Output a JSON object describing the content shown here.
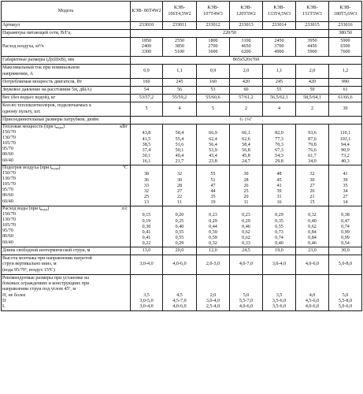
{
  "header": {
    "model_label": "Модель",
    "models": [
      "КЭВ-\n86Т4W2",
      "КЭВ-\n106Т4,5W2",
      "КЭВ-\n107Т4W3",
      "КЭВ-\n120Т5W2",
      "КЭВ-\n133Т4,5W3",
      "КЭВ-\n151Т5W3",
      "КЭВ-\n180Т5,6W3"
    ]
  },
  "rows": {
    "article": {
      "label": "Артикул",
      "values": [
        "233010",
        "233011",
        "233012",
        "233013",
        "233014",
        "233015",
        "233016"
      ]
    },
    "supply": {
      "label": "Параметры питающей сети, В/Гц",
      "value_main": "220/50",
      "value_last": "380/50"
    },
    "airflow": {
      "label": "Расход воздуха, м³/ч",
      "values": [
        "1850\n2400\n3300",
        "2550\n3850\n5100",
        "1800\n2700\n3600",
        "3100\n4650\n6200",
        "2450\n3700\n4900",
        "3950\n4450\n5900",
        "5900\n6500\n7600"
      ]
    },
    "dimensions": {
      "label": "Габаритные размеры (ДхШхВ), мм",
      "value": "865х520х760"
    },
    "current": {
      "label": "Максимальный ток при номинальном\nнапряжении, А",
      "values": [
        "0,9",
        "1,1",
        "0,9",
        "2,0",
        "1,1",
        "2,0",
        "1,2"
      ]
    },
    "power": {
      "label": "Потребляемая мощность двигателя, Вт",
      "values": [
        "160",
        "245",
        "160",
        "420",
        "245",
        "420",
        "990"
      ]
    },
    "noise": {
      "label": "Звуковое давление на расстоянии 5м, дБ(А)",
      "values": [
        "54",
        "56",
        "53",
        "60",
        "55",
        "59",
        "61"
      ]
    },
    "weight": {
      "label": "Вес (без воды/с водой), кг",
      "values": [
        "53/57,2",
        "55/59,2",
        "55/60,6",
        "57/61,2",
        "56,5/62,1",
        "58,5/64,1",
        "61/66,6"
      ]
    },
    "units_count": {
      "label": "Кол-во теплоконтиллеров, подключаемых к\nодному пульту, шт.",
      "values": [
        "5",
        "4",
        "5",
        "2",
        "4",
        "2",
        "30"
      ]
    },
    "fittings": {
      "label": "Присоединительные размеры патрубков, дюйм",
      "value": "G 1¼\""
    },
    "heat_output": {
      "label_main": "Тепловая мощность (при t",
      "label_sub": "воды",
      "label_end": ")",
      "unit": "кВт",
      "regimes": "150/70\n130/70\n105/70\n95/70\n80/60\n60/40",
      "values": [
        "43,8\n41,5\n38,5\n37,4\n30,1\n16,1",
        "58,4\n55,4\n51,6\n50,1\n40,4\n21,7",
        "66,9\n62,4\n56,4\n53,9\n43,4\n23,8",
        "66,1\n62,6\n58,4\n56,8\n45,8\n24,7",
        "82,0\n77,3\n70,3\n67,3\n54,3\n29,8",
        "93,6\n87,6\n79,8\n76,6\n61,7\n34,0",
        "110,1\n103,1\n94,4\n90,9\n73,2\n40,3"
      ]
    },
    "air_heating": {
      "label_main": "Подогрев воздуха (при t",
      "label_sub": "воды",
      "label_end": ")",
      "unit": "°C",
      "regimes": "150/70\n130/70\n105/70\n95/70\n80/60\n60/40",
      "values": [
        "38\n36\n33\n32\n25\n13",
        "32\n30\n28\n27\n22\n11",
        "55\n51\n47\n44\n35\n19",
        "30\n28\n26\n25\n20\n11",
        "48\n45\n41\n39\n31\n16",
        "32\n30\n27\n26\n21\n15",
        "41\n39\n35\n34\n27\n14"
      ]
    },
    "water_flow": {
      "label_main": "Расход воды (при t",
      "label_sub": "воды",
      "label_end": ")",
      "unit": "л/с",
      "regimes": "150/70\n130/70\n105/70\n95/70\n80/60\n60/40",
      "values": [
        "0,15\n0,19\n0,30\n0,41\n0,41\n0,22",
        "0,20\n0,25\n0,40\n0,55\n0,55\n0,29",
        "0,23\n0,29\n0,44\n0,59\n0,59\n0,32",
        "0,23\n0,29\n0,46\n0,62\n0,62\n0,33",
        "0,29\n0,35\n0,55\n0,73\n0,74\n0,40",
        "0,32\n0,40\n0,62\n0,84\n0,84\n0,46",
        "0,38\n0,47\n0,74\n0,99\n0,99\n0,54"
      ]
    },
    "jet_length": {
      "label": "Длина свободной изотермической струи, м",
      "values": [
        "13,0",
        "20,0",
        "12,0",
        "24,5",
        "19,0",
        "23,0",
        "30,0"
      ]
    },
    "mount_height": {
      "label": "Высота монтажа при направлении нагретой\nструи вертикально вниз, м\n(вода 95/70º, воздух 15ºС)",
      "values": [
        "3,0-4,0",
        "4,0-6,0",
        "2,0-3,0",
        "4,0-7,0",
        "3,0-4,0",
        "4,0-6,0",
        "5,0-8,0"
      ]
    },
    "recommended": {
      "label": "Рекомендуемые размеры при установке на\nбоковых ограждениях и конструкциях при\nнаправлении струи под углом 45º, м\nН, не более\nD\nL",
      "values": [
        "\n\n\n3,5\n3,0-5,0\n3,0-4,0",
        "\n\n\n4,5\n4,5-7,0\n4,0-6,0",
        "\n\n\n2,0\n3,0-4,0\n2,5-4,0",
        "\n\n\n5,0\n5,5-7,0\n4,0-6,0",
        "\n\n\n3,5\n3,5-6,0\n3,5-6,0",
        "\n\n\n4,0\n4,5-6,0\n4,0-6,0",
        "\n\n\n5,0\n5,5-8,0\n5,0-6,0"
      ]
    }
  }
}
